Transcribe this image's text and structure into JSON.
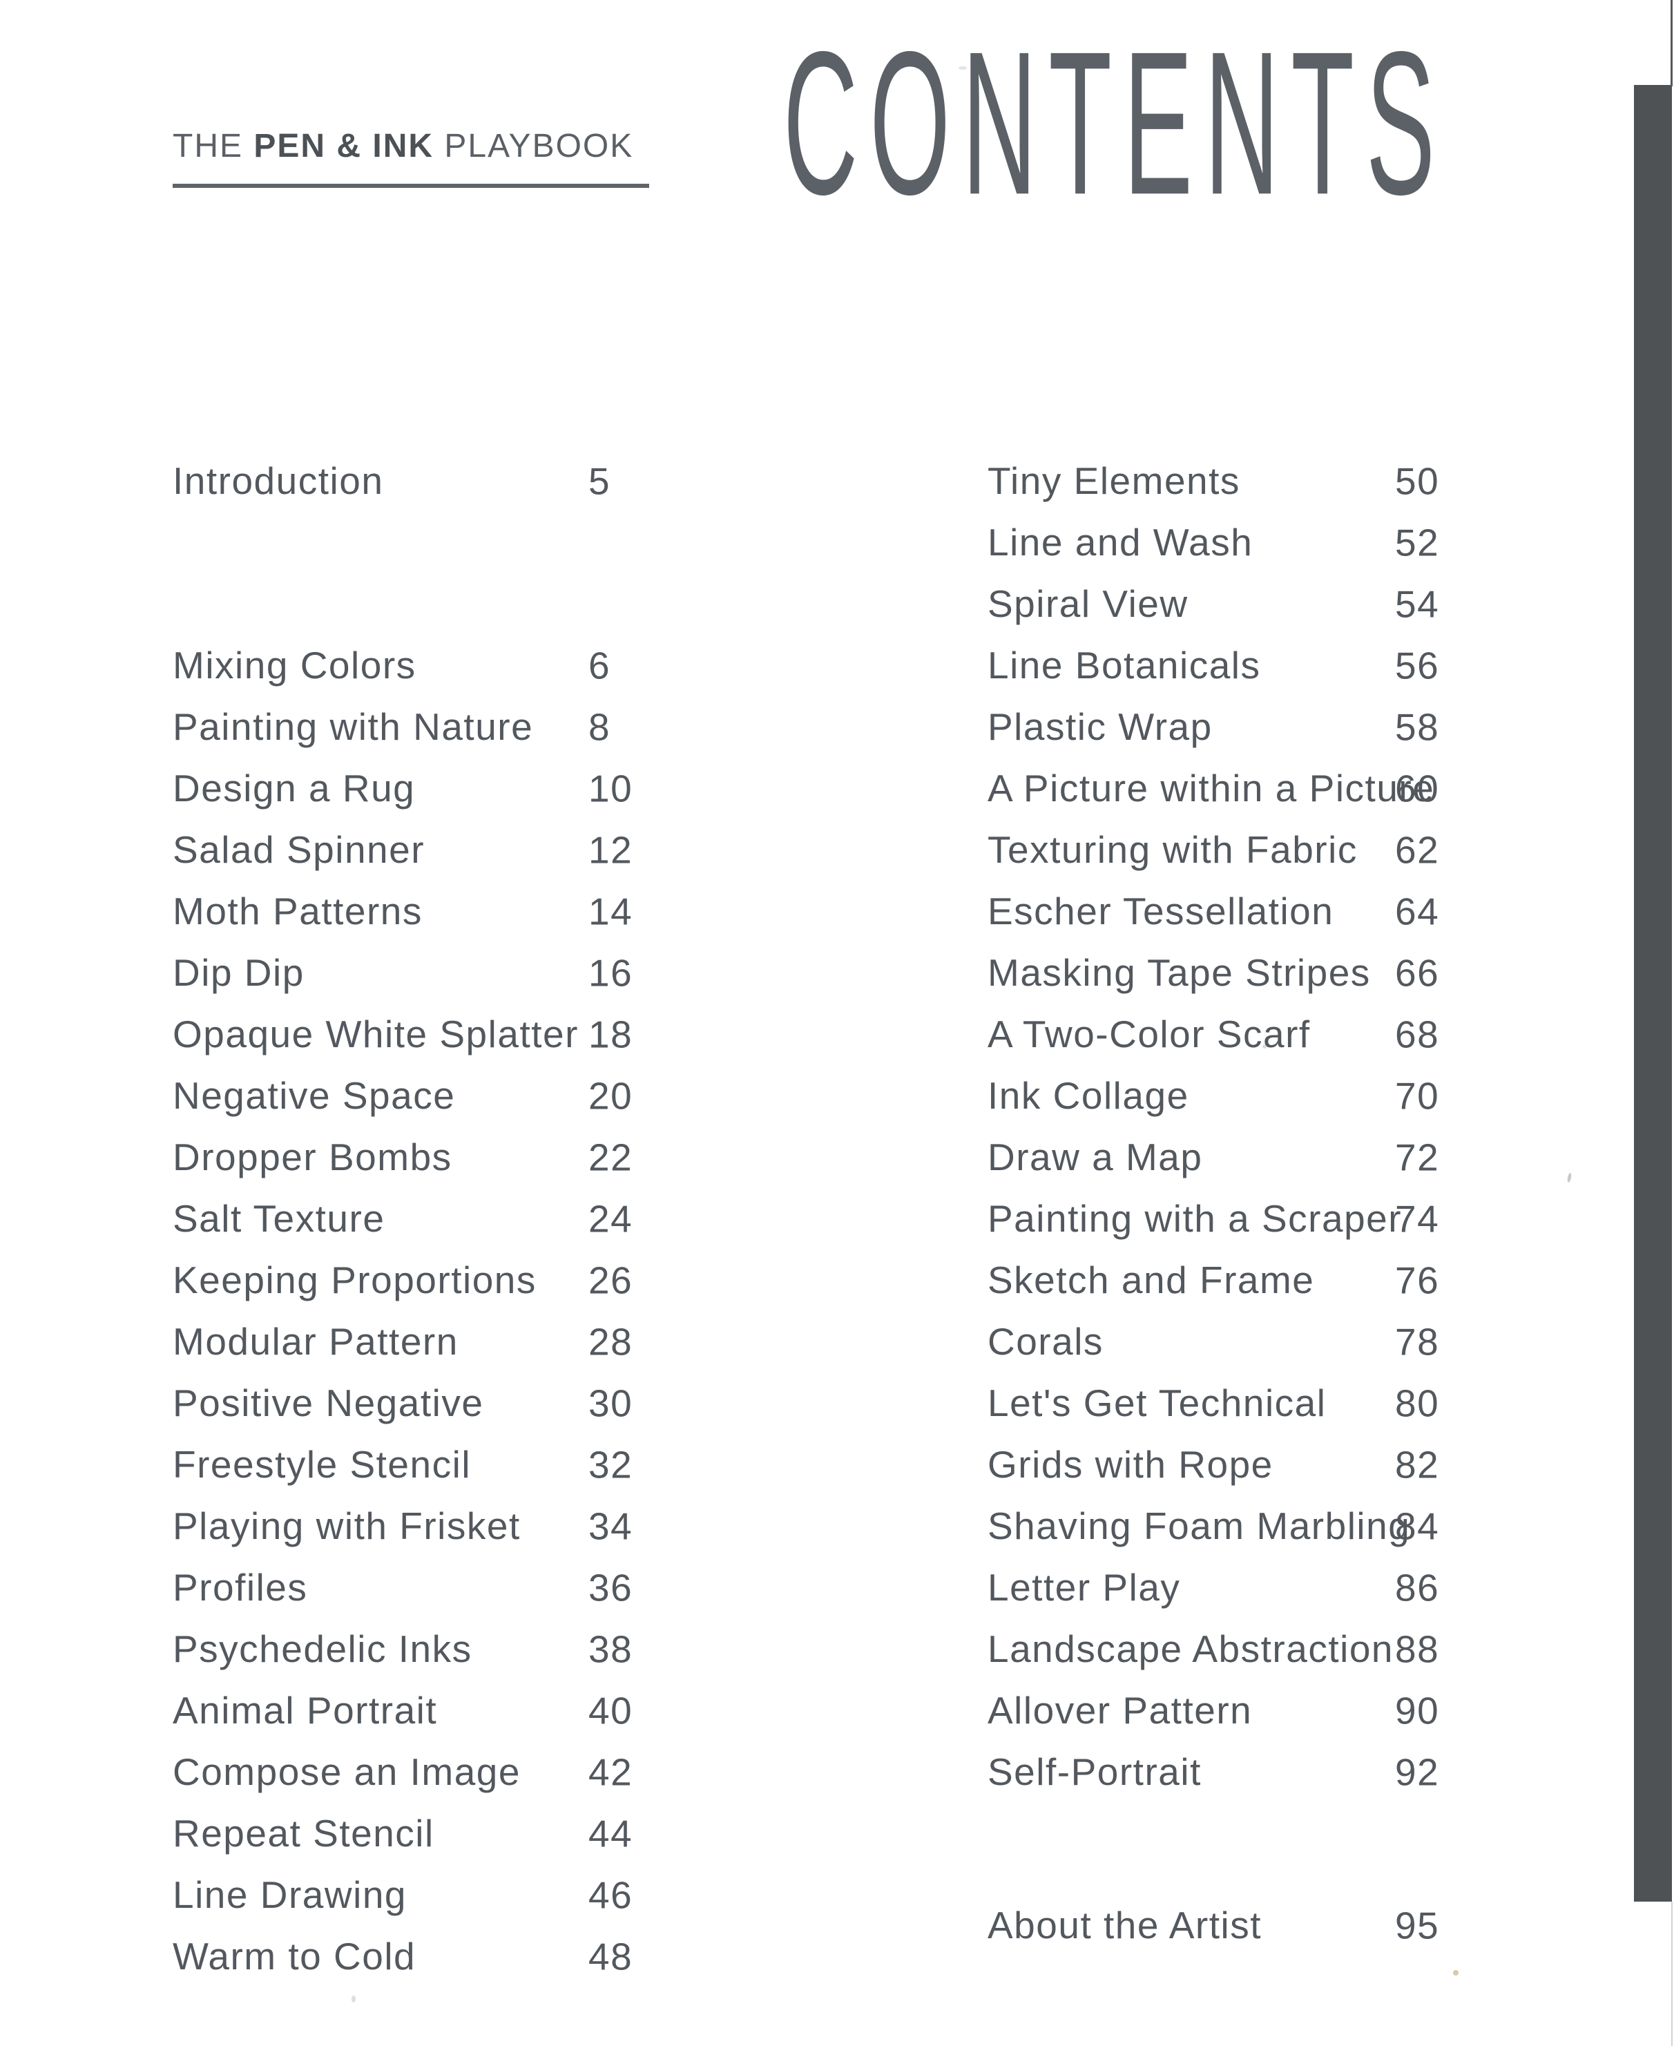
{
  "brand": {
    "pre": "THE ",
    "highlight": "PEN & INK",
    "post": " PLAYBOOK"
  },
  "title": "CONTENTS",
  "toc": {
    "left": {
      "intro": {
        "label": "Introduction",
        "page": "5"
      },
      "entries": [
        {
          "label": "Mixing Colors",
          "page": "6"
        },
        {
          "label": "Painting with Nature",
          "page": "8"
        },
        {
          "label": "Design a Rug",
          "page": "10"
        },
        {
          "label": "Salad Spinner",
          "page": "12"
        },
        {
          "label": "Moth Patterns",
          "page": "14"
        },
        {
          "label": "Dip Dip",
          "page": "16"
        },
        {
          "label": "Opaque White Splatter",
          "page": "18"
        },
        {
          "label": "Negative Space",
          "page": "20"
        },
        {
          "label": "Dropper Bombs",
          "page": "22"
        },
        {
          "label": "Salt Texture",
          "page": "24"
        },
        {
          "label": "Keeping Proportions",
          "page": "26"
        },
        {
          "label": "Modular Pattern",
          "page": "28"
        },
        {
          "label": "Positive Negative",
          "page": "30"
        },
        {
          "label": "Freestyle Stencil",
          "page": "32"
        },
        {
          "label": "Playing with Frisket",
          "page": "34"
        },
        {
          "label": "Profiles",
          "page": "36"
        },
        {
          "label": "Psychedelic Inks",
          "page": "38"
        },
        {
          "label": "Animal Portrait",
          "page": "40"
        },
        {
          "label": "Compose an Image",
          "page": "42"
        },
        {
          "label": "Repeat Stencil",
          "page": "44"
        },
        {
          "label": "Line Drawing",
          "page": "46"
        },
        {
          "label": "Warm to Cold",
          "page": "48"
        }
      ]
    },
    "right": {
      "entries": [
        {
          "label": "Tiny Elements",
          "page": "50"
        },
        {
          "label": "Line and Wash",
          "page": "52"
        },
        {
          "label": "Spiral View",
          "page": "54"
        },
        {
          "label": "Line Botanicals",
          "page": "56"
        },
        {
          "label": "Plastic Wrap",
          "page": "58"
        },
        {
          "label": "A Picture within a Picture",
          "page": "60"
        },
        {
          "label": "Texturing with Fabric",
          "page": "62"
        },
        {
          "label": "Escher Tessellation",
          "page": "64"
        },
        {
          "label": "Masking Tape Stripes",
          "page": "66"
        },
        {
          "label": "A Two-Color Scarf",
          "page": "68"
        },
        {
          "label": "Ink Collage",
          "page": "70"
        },
        {
          "label": "Draw a Map",
          "page": "72"
        },
        {
          "label": "Painting with a Scraper",
          "page": "74"
        },
        {
          "label": "Sketch and Frame",
          "page": "76"
        },
        {
          "label": "Corals",
          "page": "78"
        },
        {
          "label": "Let's Get Technical",
          "page": "80"
        },
        {
          "label": "Grids with Rope",
          "page": "82"
        },
        {
          "label": "Shaving Foam Marbling",
          "page": "84"
        },
        {
          "label": "Letter Play",
          "page": "86"
        },
        {
          "label": "Landscape Abstraction",
          "page": "88"
        },
        {
          "label": "Allover Pattern",
          "page": "90"
        },
        {
          "label": "Self-Portrait",
          "page": "92"
        }
      ],
      "footer": {
        "label": "About the Artist",
        "page": "95"
      }
    }
  },
  "colors": {
    "background": "#ffffff",
    "text": "#53585e",
    "title": "#5c6167",
    "rule": "#606468",
    "edge_bar": "#4f5254"
  }
}
